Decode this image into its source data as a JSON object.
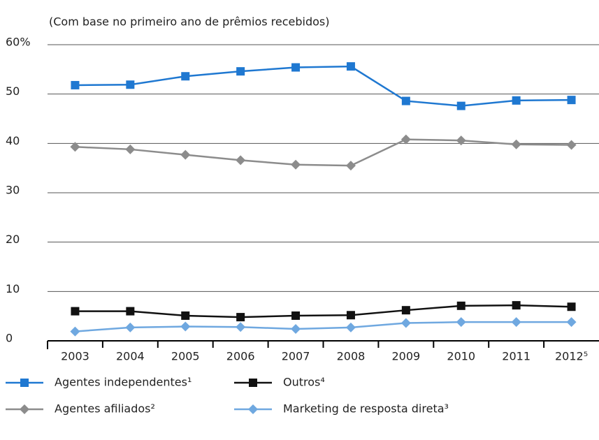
{
  "chart_data": {
    "type": "line",
    "subtitle": "(Com base no primeiro ano de prêmios recebidos)",
    "categories": [
      "2003",
      "2004",
      "2005",
      "2006",
      "2007",
      "2008",
      "2009",
      "2010",
      "2011",
      "2012⁵"
    ],
    "series": [
      {
        "name": "Agentes independentes¹",
        "color": "#1f78d1",
        "marker": "square",
        "values": [
          51.8,
          51.9,
          53.6,
          54.6,
          55.4,
          55.6,
          48.6,
          47.6,
          48.7,
          48.8
        ]
      },
      {
        "name": "Agentes afiliados²",
        "color": "#8c8c8c",
        "marker": "diamond",
        "values": [
          39.3,
          38.8,
          37.7,
          36.6,
          35.7,
          35.5,
          40.8,
          40.6,
          39.8,
          39.7
        ]
      },
      {
        "name": "Outros⁴",
        "color": "#111111",
        "marker": "square",
        "values": [
          6.0,
          6.0,
          5.1,
          4.8,
          5.1,
          5.2,
          6.2,
          7.1,
          7.2,
          6.9
        ]
      },
      {
        "name": "Marketing de resposta direta³",
        "color": "#6fa8e0",
        "marker": "diamond",
        "values": [
          1.9,
          2.7,
          2.9,
          2.8,
          2.4,
          2.7,
          3.6,
          3.8,
          3.8,
          3.8
        ]
      }
    ],
    "ylim": [
      0,
      60
    ],
    "yticks": [
      0,
      10,
      20,
      30,
      40,
      50,
      {
        "value": 60,
        "label": "60%"
      }
    ],
    "grid": true
  }
}
